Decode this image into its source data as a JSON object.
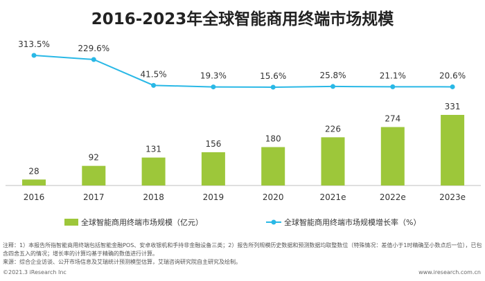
{
  "title": "2016-2023年全球智能商用终端市场规模",
  "chart_data": {
    "type": "bar+line",
    "categories": [
      "2016",
      "2017",
      "2018",
      "2019",
      "2020",
      "2021e",
      "2022e",
      "2023e"
    ],
    "series": [
      {
        "name": "全球智能商用终端市场规模（亿元）",
        "type": "bar",
        "values": [
          28,
          92,
          131,
          156,
          180,
          226,
          274,
          331
        ],
        "labels": [
          "28",
          "92",
          "131",
          "156",
          "180",
          "226",
          "274",
          "331"
        ],
        "color": "#9dc73a"
      },
      {
        "name": "全球智能商用终端市场规模增长率（%）",
        "type": "line",
        "values": [
          313.5,
          229.6,
          41.5,
          19.3,
          15.6,
          25.8,
          21.1,
          20.6
        ],
        "labels": [
          "313.5%",
          "229.6%",
          "41.5%",
          "19.3%",
          "15.6%",
          "25.8%",
          "21.1%",
          "20.6%"
        ],
        "color": "#29b8e6"
      }
    ],
    "legend_position": "bottom"
  },
  "notes": [
    "注释：1）本报告所指智能商用终端包括智能金融POS、安卓收银机和手持非金融设备三类；2）报告所列规模历史数据和预测数据均取整数位（特殊情况：差值小于1时精确至小数点后一位），已包含四舍五入的情况；增长率的计算均基于精确的数值进行计算。",
    "来源：综合企业访谈、公开市场信息及艾瑞统计预测模型估算，艾瑞咨询研究院自主研究及绘制。"
  ],
  "footer": {
    "left": "©2021.3 iResearch Inc",
    "right": "www.iresearch.com.cn"
  }
}
